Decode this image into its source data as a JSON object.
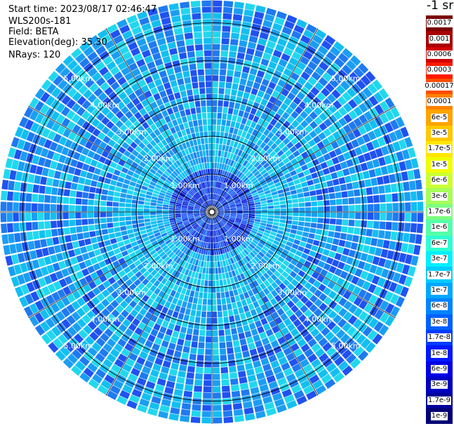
{
  "info": {
    "start_time": "Start time: 2023/08/17 02:46:47",
    "instrument": "WLS200s-181",
    "field": "Field: BETA",
    "elevation": "Elevation(deg): 35.30",
    "nrays": "NRays: 120"
  },
  "colorbar": {
    "title": "-1 sr",
    "entries": [
      {
        "label": "0.0017",
        "color": "#7a0000"
      },
      {
        "label": "0.001",
        "color": "#a80000"
      },
      {
        "label": "0.0006",
        "color": "#d40000"
      },
      {
        "label": "0.0003",
        "color": "#ff1a00"
      },
      {
        "label": "0.00017",
        "color": "#ff4d00"
      },
      {
        "label": "0.0001",
        "color": "#ff8000"
      },
      {
        "label": "6e-5",
        "color": "#ffa400"
      },
      {
        "label": "3e-5",
        "color": "#ffc800"
      },
      {
        "label": "1.7e-5",
        "color": "#ffe600"
      },
      {
        "label": "1e-5",
        "color": "#f0ff00"
      },
      {
        "label": "6e-6",
        "color": "#ccff33"
      },
      {
        "label": "3e-6",
        "color": "#a6ff59"
      },
      {
        "label": "1.7e-6",
        "color": "#7dff80"
      },
      {
        "label": "1e-6",
        "color": "#55ffaa"
      },
      {
        "label": "6e-7",
        "color": "#2dffd2"
      },
      {
        "label": "3e-7",
        "color": "#00f0ff"
      },
      {
        "label": "1.7e-7",
        "color": "#00ccff"
      },
      {
        "label": "1e-7",
        "color": "#00a8ff"
      },
      {
        "label": "6e-8",
        "color": "#0084ff"
      },
      {
        "label": "3e-8",
        "color": "#0060ff"
      },
      {
        "label": "1.7e-8",
        "color": "#003cff"
      },
      {
        "label": "1e-8",
        "color": "#0018ff"
      },
      {
        "label": "6e-9",
        "color": "#0000e6"
      },
      {
        "label": "3e-9",
        "color": "#0000c0"
      },
      {
        "label": "1.7e-9",
        "color": "#00009a"
      },
      {
        "label": "1e-9",
        "color": "#000074"
      }
    ]
  },
  "plot": {
    "nrays": 120,
    "max_range_km": 5.6,
    "range_rings_km": [
      1.0,
      2.0,
      3.0,
      4.0,
      5.0
    ],
    "ring_labels": [
      "1.00km",
      "2.00km",
      "3.00km",
      "4.00km",
      "5.00km"
    ],
    "palette": [
      "#0a1fd8",
      "#1f52f0",
      "#1e7af0",
      "#1a9ef2",
      "#12bff0",
      "#20d8ee",
      "#3df0e4"
    ]
  }
}
